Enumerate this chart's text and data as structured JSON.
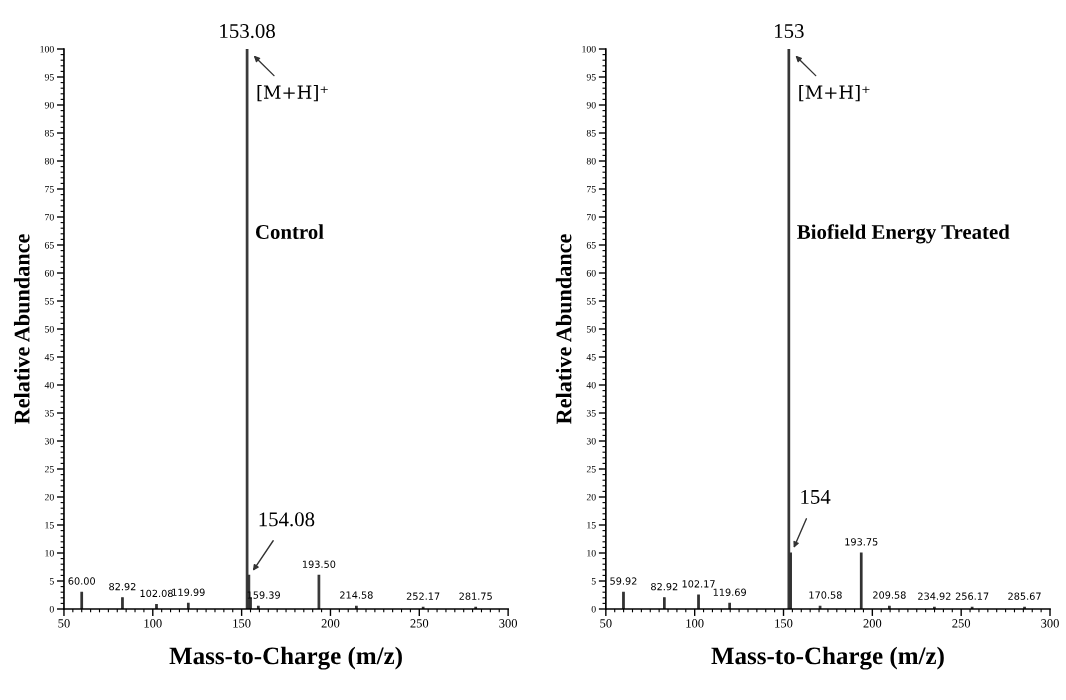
{
  "chart_data": [
    {
      "type": "bar",
      "xlabel": "Mass-to-Charge (m/z)",
      "ylabel": "Relative Abundance",
      "xlim": [
        50,
        300
      ],
      "xticks": [
        50,
        100,
        150,
        200,
        250,
        300
      ],
      "ylim": [
        0,
        100
      ],
      "yticks": [
        0,
        5,
        10,
        15,
        20,
        25,
        30,
        35,
        40,
        45,
        50,
        55,
        60,
        65,
        70,
        75,
        80,
        85,
        90,
        95,
        100
      ],
      "grid": false,
      "legend": false,
      "series": [
        {
          "color": "#333333",
          "x": [
            60.0,
            82.92,
            102.08,
            119.99,
            153.08,
            154.08,
            155.0,
            159.39,
            193.5,
            214.58,
            252.17,
            281.75
          ],
          "values": [
            3,
            2,
            0.8,
            1,
            100,
            6,
            2,
            0.5,
            6,
            0.5,
            0.3,
            0.3
          ]
        }
      ],
      "annotations": [
        {
          "text": "153.08",
          "x": 153.08,
          "y": 100
        },
        {
          "text": "[M+H]⁺",
          "x": 153.08,
          "y": 100
        },
        "Control",
        {
          "text": "154.08",
          "x": 154.08,
          "y": 6
        },
        {
          "text": "60.00",
          "x": 60.0,
          "y": 3
        },
        {
          "text": "82.92",
          "x": 82.92,
          "y": 2
        },
        {
          "text": "102.08",
          "x": 102.08,
          "y": 0.8
        },
        {
          "text": "119.99",
          "x": 119.99,
          "y": 1
        },
        {
          "text": "159.39",
          "x": 159.39,
          "y": 0.5
        },
        {
          "text": "193.50",
          "x": 193.5,
          "y": 6
        },
        {
          "text": "214.58",
          "x": 214.58,
          "y": 0.5
        },
        {
          "text": "252.17",
          "x": 252.17,
          "y": 0.3
        },
        {
          "text": "281.75",
          "x": 281.75,
          "y": 0.3
        }
      ]
    },
    {
      "type": "bar",
      "xlabel": "Mass-to-Charge (m/z)",
      "ylabel": "Relative Abundance",
      "xlim": [
        50,
        300
      ],
      "xticks": [
        50,
        100,
        150,
        200,
        250,
        300
      ],
      "ylim": [
        0,
        100
      ],
      "yticks": [
        0,
        5,
        10,
        15,
        20,
        25,
        30,
        35,
        40,
        45,
        50,
        55,
        60,
        65,
        70,
        75,
        80,
        85,
        90,
        95,
        100
      ],
      "grid": false,
      "legend": false,
      "series": [
        {
          "color": "#333333",
          "x": [
            59.92,
            82.92,
            102.17,
            119.69,
            153.0,
            154.0,
            170.58,
            193.75,
            209.58,
            234.92,
            256.17,
            285.67
          ],
          "values": [
            3,
            2,
            2.5,
            1,
            100,
            10,
            0.5,
            10,
            0.5,
            0.3,
            0.3,
            0.3
          ]
        }
      ],
      "annotations": [
        {
          "text": "153",
          "x": 153.0,
          "y": 100
        },
        {
          "text": "[M+H]⁺",
          "x": 153.0,
          "y": 100
        },
        "Biofield Energy Treated",
        {
          "text": "154",
          "x": 154.0,
          "y": 10
        },
        {
          "text": "59.92",
          "x": 59.92,
          "y": 3
        },
        {
          "text": "82.92",
          "x": 82.92,
          "y": 2
        },
        {
          "text": "102.17",
          "x": 102.17,
          "y": 2.5
        },
        {
          "text": "119.69",
          "x": 119.69,
          "y": 1
        },
        {
          "text": "170.58",
          "x": 170.58,
          "y": 0.5
        },
        {
          "text": "193.75",
          "x": 193.75,
          "y": 10
        },
        {
          "text": "209.58",
          "x": 209.58,
          "y": 0.5
        },
        {
          "text": "234.92",
          "x": 234.92,
          "y": 0.3
        },
        {
          "text": "256.17",
          "x": 256.17,
          "y": 0.3
        },
        {
          "text": "285.67",
          "x": 285.67,
          "y": 0.3
        }
      ]
    }
  ]
}
